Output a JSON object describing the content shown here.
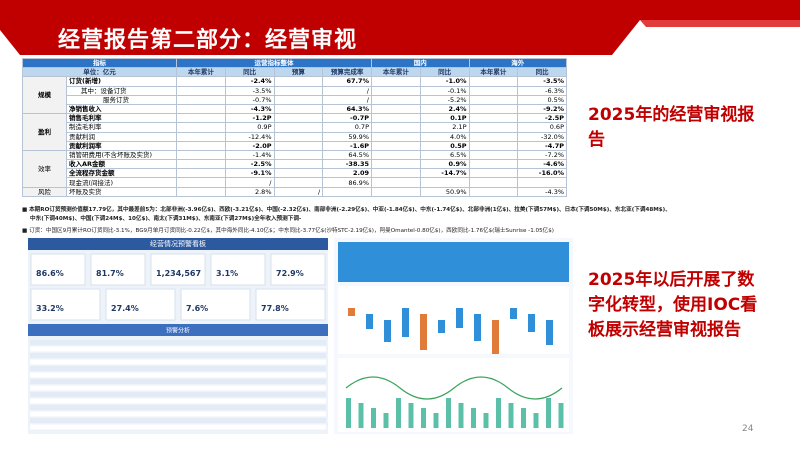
{
  "header": {
    "title": "经营报告第二部分：经营审视"
  },
  "table": {
    "head": [
      [
        {
          "text": "指标",
          "span": 2
        },
        {
          "text": "运营指标整体",
          "span": 4
        },
        {
          "text": "国内",
          "span": 2
        },
        {
          "text": "海外",
          "span": 2
        }
      ],
      [
        {
          "text": "单位：亿元",
          "span": 2
        },
        {
          "text": "本年累计",
          "span": 1
        },
        {
          "text": "同比",
          "span": 1
        },
        {
          "text": "预算",
          "span": 1
        },
        {
          "text": "预算完成率",
          "span": 1
        },
        {
          "text": "本年累计",
          "span": 1
        },
        {
          "text": "同比",
          "span": 1
        },
        {
          "text": "本年累计",
          "span": 1
        },
        {
          "text": "同比",
          "span": 1
        }
      ]
    ],
    "groups": [
      {
        "name": "规模",
        "rows": [
          {
            "label": "订货(新增)",
            "bold": true,
            "cells": {
              "yoy": "-2.4%",
              "rate": "67.7%",
              "dom_yoy": "-1.0%",
              "ovs_yoy": "-3.5%"
            }
          },
          {
            "label": "其中：设备订货",
            "cells": {
              "yoy": "-3.5%",
              "rate": "/",
              "dom_yoy": "-0.1%",
              "ovs_yoy": "-6.3%"
            }
          },
          {
            "label": "服务订货",
            "cells": {
              "yoy": "-0.7%",
              "rate": "/",
              "dom_yoy": "-5.2%",
              "ovs_yoy": "0.5%"
            }
          },
          {
            "label": "净销售收入",
            "bold": true,
            "cells": {
              "yoy": "-4.3%",
              "rate": "64.3%",
              "dom_yoy": "2.4%",
              "ovs_yoy": "-9.2%"
            }
          }
        ]
      },
      {
        "name": "盈利",
        "rows": [
          {
            "label": "销售毛利率",
            "bold": true,
            "cells": {
              "yoy": "-1.2P",
              "rate": "-0.7P",
              "dom_yoy": "0.1P",
              "ovs_yoy": "-2.5P"
            }
          },
          {
            "label": "制造毛利率",
            "cells": {
              "yoy": "0.9P",
              "rate": "0.7P",
              "dom_yoy": "2.1P",
              "ovs_yoy": "0.6P"
            }
          },
          {
            "label": "贡献利润",
            "cells": {
              "yoy": "-12.4%",
              "rate": "59.9%",
              "dom_yoy": "4.0%",
              "ovs_yoy": "-32.0%"
            }
          },
          {
            "label": "贡献利润率",
            "bold": true,
            "cells": {
              "yoy": "-2.0P",
              "rate": "-1.6P",
              "dom_yoy": "0.5P",
              "ovs_yoy": "-4.7P"
            }
          }
        ]
      },
      {
        "name": "效率",
        "rows": [
          {
            "label": "销管研费用(不含坏账及实货)",
            "cells": {
              "yoy": "-1.4%",
              "rate": "64.5%",
              "dom_yoy": "6.5%",
              "ovs_yoy": "-7.2%"
            }
          },
          {
            "label": "收入AR金额",
            "bold": true,
            "cells": {
              "yoy": "-2.5%",
              "rate": "-38.35",
              "dom_yoy": "0.9%",
              "ovs_yoy": "-4.6%"
            }
          },
          {
            "label": "全流程存货金额",
            "bold": true,
            "cells": {
              "yoy": "-9.1%",
              "rate": "2.09",
              "dom_yoy": "-14.7%",
              "ovs_yoy": "-16.0%"
            }
          },
          {
            "label": "现金流(间接法)",
            "cells": {
              "yoy": "/",
              "rate": "86.9%"
            }
          }
        ]
      },
      {
        "name": "风险",
        "rows": [
          {
            "label": "坏账及实货",
            "cells": {
              "yoy": "2.8%",
              "budget": "/",
              "dom_yoy": "50.9%",
              "ovs_yoy": "-4.3%"
            }
          }
        ]
      }
    ]
  },
  "notes": [
    "本期RO订货预测价值额17.79亿，其中最差前5为：北部非洲(-3.96亿$)、西欧(-3.21亿$)、中国(-2.32亿$)、南部非洲(-2.29亿$)、中亚(-1.84亿$)、中东(-1.74亿$)、北部非洲(1亿$)、拉美(下调57M$)、日本(下调50M$)、东北亚(下调48M$)、",
    "中东(下调40M$)、中国(下调24M$、10亿$)、南太(下调31M$)、东南亚(下调27M$)全年收入预测下调-",
    "订货：中国区9月累计RO订货同比-3.1%，BG9月单月订货同比-0.22亿$，其中海外同比-4.10亿$；中东同比-3.77亿$(沙特STC-2.19亿$)，阿曼Omantel-0.80亿$)，西欧同比-1.76亿$(瑞士Sunrise -1.05亿$)"
  ],
  "dashboard": {
    "title": "经营情况预警看板",
    "kpis": [
      "86.6%",
      "81.7%",
      "1,234,567",
      "3.1%",
      "72.9%",
      "33.2%",
      "27.4%",
      "7.6%",
      "77.8%"
    ],
    "section": "预警分析"
  },
  "callouts": [
    "2025年的经营审视报告",
    "2025年以后开展了数字化转型，使用IOC看板展示经营审视报告"
  ],
  "page_number": "24"
}
